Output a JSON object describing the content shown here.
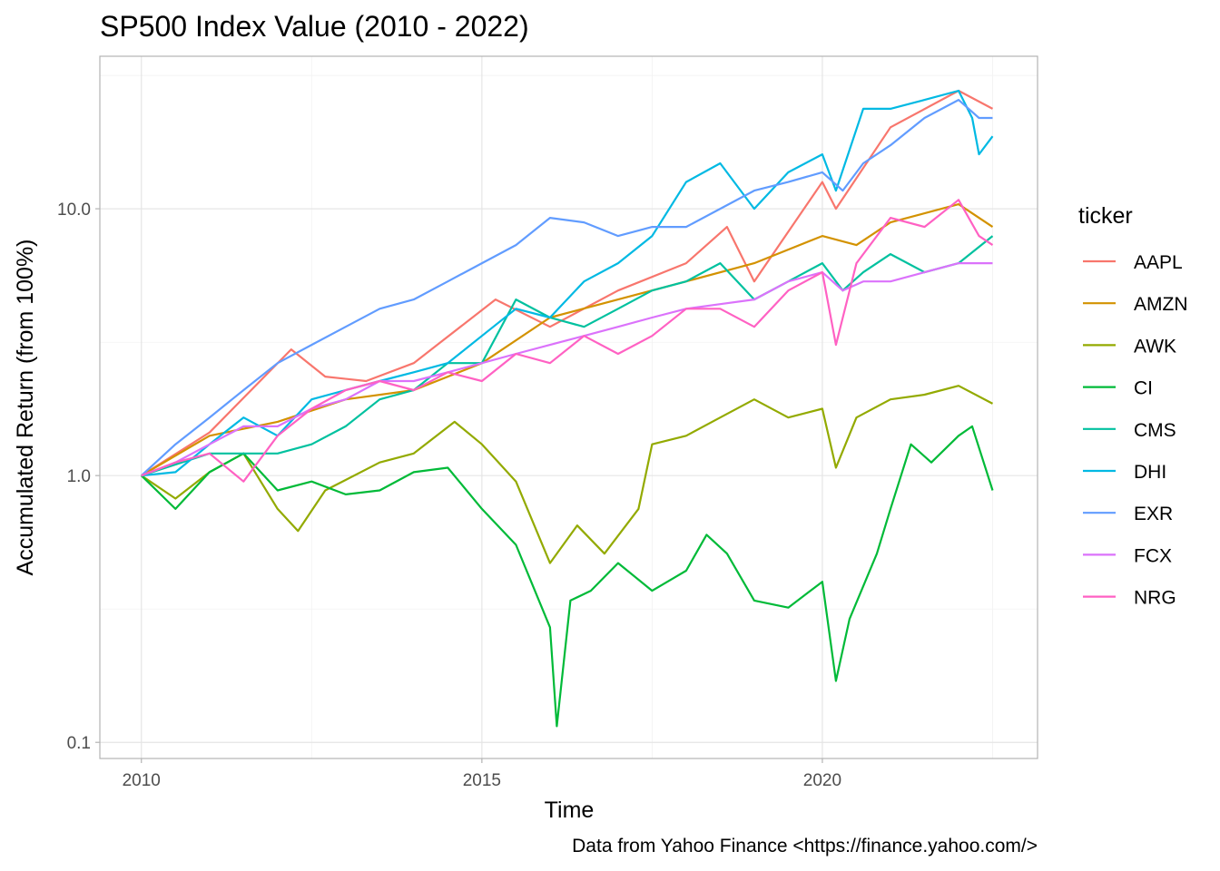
{
  "chart_data": {
    "type": "line",
    "title": "SP500 Index Value (2010 - 2022)",
    "xlabel": "Time",
    "ylabel": "Accumulated Return (from 100%)",
    "caption": "Data from Yahoo Finance <https://finance.yahoo.com/>",
    "x_scale": "time",
    "y_scale": "log10",
    "xlim": [
      2009.39,
      2023.16
    ],
    "ylim": [
      0.087,
      37.3
    ],
    "x_ticks": [
      {
        "value": 2010,
        "label": "2010"
      },
      {
        "value": 2015,
        "label": "2015"
      },
      {
        "value": 2020,
        "label": "2020"
      }
    ],
    "y_ticks": [
      {
        "value": 0.1,
        "label": "0.1"
      },
      {
        "value": 1,
        "label": "1.0"
      },
      {
        "value": 10,
        "label": "10.0"
      }
    ],
    "grid": true,
    "legend": {
      "title": "ticker",
      "position": "right"
    },
    "series": [
      {
        "name": "AAPL",
        "color": "#F8766D",
        "x": [
          2010,
          2011,
          2012.2,
          2012.7,
          2013.3,
          2014,
          2015.2,
          2016,
          2017,
          2018,
          2018.6,
          2019,
          2020,
          2020.2,
          2021,
          2022,
          2022.5
        ],
        "y": [
          1.0,
          1.45,
          2.97,
          2.35,
          2.26,
          2.64,
          4.57,
          3.61,
          4.94,
          6.25,
          8.55,
          5.34,
          12.6,
          10.0,
          20.2,
          27.7,
          23.7
        ]
      },
      {
        "name": "AMZN",
        "color": "#D39200",
        "x": [
          2010,
          2011,
          2012,
          2013,
          2014,
          2015,
          2016,
          2017,
          2018,
          2019,
          2020,
          2020.5,
          2021,
          2022,
          2022.5
        ],
        "y": [
          1.0,
          1.41,
          1.59,
          1.93,
          2.09,
          2.64,
          3.91,
          4.57,
          5.34,
          6.25,
          7.91,
          7.31,
          8.89,
          10.4,
          8.55
        ]
      },
      {
        "name": "AWK",
        "color": "#93AA00",
        "x": [
          2010,
          2010.5,
          2011,
          2011.5,
          2012,
          2012.3,
          2012.7,
          2013.5,
          2014,
          2014.6,
          2015,
          2015.5,
          2016,
          2016.4,
          2016.8,
          2017.3,
          2017.5,
          2018,
          2018.5,
          2019,
          2019.5,
          2020,
          2020.2,
          2020.5,
          2021,
          2021.5,
          2022,
          2022.5
        ],
        "y": [
          1.0,
          0.82,
          1.03,
          1.21,
          0.75,
          0.62,
          0.88,
          1.12,
          1.21,
          1.59,
          1.31,
          0.95,
          0.47,
          0.65,
          0.51,
          0.75,
          1.31,
          1.41,
          1.65,
          1.93,
          1.65,
          1.78,
          1.07,
          1.65,
          1.93,
          2.01,
          2.17,
          1.86
        ]
      },
      {
        "name": "CI",
        "color": "#00BA38",
        "x": [
          2010,
          2010.5,
          2011,
          2011.5,
          2012,
          2012.5,
          2013,
          2013.5,
          2014,
          2014.5,
          2015,
          2015.5,
          2016,
          2016.1,
          2016.3,
          2016.6,
          2017,
          2017.5,
          2018,
          2018.3,
          2018.6,
          2019,
          2019.5,
          2020,
          2020.2,
          2020.4,
          2020.8,
          2021,
          2021.3,
          2021.6,
          2022,
          2022.2,
          2022.5
        ],
        "y": [
          1.0,
          0.75,
          1.03,
          1.21,
          0.88,
          0.95,
          0.85,
          0.88,
          1.03,
          1.07,
          0.75,
          0.55,
          0.27,
          0.115,
          0.34,
          0.37,
          0.47,
          0.37,
          0.44,
          0.6,
          0.51,
          0.34,
          0.32,
          0.4,
          0.17,
          0.29,
          0.51,
          0.75,
          1.31,
          1.12,
          1.41,
          1.53,
          0.88
        ]
      },
      {
        "name": "CMS",
        "color": "#00C19F",
        "x": [
          2010,
          2011,
          2012,
          2012.5,
          2013,
          2013.5,
          2014,
          2014.5,
          2015,
          2015.5,
          2016,
          2016.5,
          2017,
          2017.5,
          2018,
          2018.5,
          2019,
          2019.5,
          2020,
          2020.3,
          2020.6,
          2021,
          2021.5,
          2022,
          2022.5
        ],
        "y": [
          1.0,
          1.21,
          1.21,
          1.31,
          1.53,
          1.93,
          2.09,
          2.64,
          2.64,
          4.57,
          3.91,
          3.61,
          4.22,
          4.94,
          5.34,
          6.25,
          4.57,
          5.34,
          6.25,
          4.94,
          5.78,
          6.76,
          5.78,
          6.25,
          7.91
        ]
      },
      {
        "name": "DHI",
        "color": "#00B9E3",
        "x": [
          2010,
          2010.5,
          2011,
          2011.5,
          2012,
          2012.5,
          2013,
          2013.5,
          2014,
          2014.5,
          2015,
          2015.5,
          2016,
          2016.5,
          2017,
          2017.5,
          2018,
          2018.5,
          2019,
          2019.5,
          2020,
          2020.2,
          2020.6,
          2021,
          2021.5,
          2022,
          2022.2,
          2022.3,
          2022.5
        ],
        "y": [
          1.0,
          1.03,
          1.31,
          1.65,
          1.41,
          1.93,
          2.09,
          2.26,
          2.44,
          2.64,
          3.34,
          4.22,
          3.91,
          5.34,
          6.25,
          7.91,
          12.6,
          14.8,
          10.0,
          13.7,
          16.0,
          11.7,
          23.7,
          23.7,
          25.6,
          27.7,
          21.9,
          16.0,
          18.7
        ]
      },
      {
        "name": "EXR",
        "color": "#619CFF",
        "x": [
          2010,
          2010.5,
          2011,
          2011.5,
          2012,
          2012.5,
          2013,
          2013.5,
          2014,
          2014.5,
          2015,
          2015.5,
          2016,
          2016.5,
          2017,
          2017.5,
          2018,
          2018.5,
          2019,
          2019.5,
          2020,
          2020.3,
          2020.6,
          2021,
          2021.5,
          2022,
          2022.3,
          2022.5
        ],
        "y": [
          1.0,
          1.31,
          1.65,
          2.09,
          2.64,
          3.09,
          3.61,
          4.22,
          4.57,
          5.34,
          6.25,
          7.31,
          9.25,
          8.89,
          7.91,
          8.55,
          8.55,
          10.0,
          11.7,
          12.6,
          13.7,
          11.7,
          14.8,
          17.3,
          21.9,
          25.6,
          21.9,
          21.9
        ]
      },
      {
        "name": "FCX",
        "color": "#DB72FB",
        "x": [
          2010,
          2010.5,
          2011,
          2011.5,
          2012,
          2012.5,
          2013,
          2013.5,
          2014,
          2014.5,
          2015,
          2015.5,
          2016,
          2016.5,
          2017,
          2017.5,
          2018,
          2018.5,
          2019,
          2019.5,
          2020,
          2020.3,
          2020.6,
          2021,
          2021.5,
          2022,
          2022.5
        ],
        "y": [
          1.0,
          1.12,
          1.31,
          1.53,
          1.53,
          1.78,
          1.93,
          2.26,
          2.26,
          2.44,
          2.64,
          2.86,
          3.09,
          3.34,
          3.61,
          3.91,
          4.22,
          4.39,
          4.57,
          5.34,
          5.78,
          4.94,
          5.34,
          5.34,
          5.78,
          6.25,
          6.25
        ]
      },
      {
        "name": "NRG",
        "color": "#FF61C3",
        "x": [
          2010,
          2010.5,
          2011,
          2011.5,
          2012,
          2012.5,
          2013,
          2013.5,
          2014,
          2014.5,
          2015,
          2015.5,
          2016,
          2016.5,
          2017,
          2017.5,
          2018,
          2018.5,
          2019,
          2019.5,
          2020,
          2020.2,
          2020.5,
          2021,
          2021.5,
          2022,
          2022.3,
          2022.5
        ],
        "y": [
          1.0,
          1.12,
          1.21,
          0.95,
          1.41,
          1.78,
          2.09,
          2.26,
          2.09,
          2.44,
          2.26,
          2.86,
          2.64,
          3.34,
          2.86,
          3.34,
          4.22,
          4.22,
          3.61,
          4.94,
          5.78,
          3.09,
          6.25,
          9.25,
          8.55,
          10.8,
          7.91,
          7.31
        ]
      }
    ]
  }
}
